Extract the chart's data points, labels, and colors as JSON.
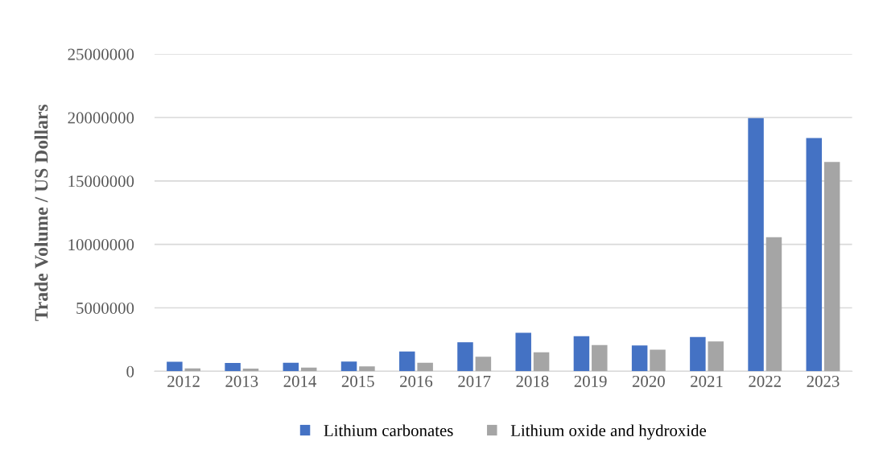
{
  "chart_data": {
    "type": "bar",
    "ylabel": "Trade Volume / US Dollars",
    "categories": [
      "2012",
      "2013",
      "2014",
      "2015",
      "2016",
      "2017",
      "2018",
      "2019",
      "2020",
      "2021",
      "2022",
      "2023"
    ],
    "series": [
      {
        "name": "Lithium carbonates",
        "color": "#4472c4",
        "values": [
          750000,
          660000,
          680000,
          770000,
          1560000,
          2290000,
          3030000,
          2760000,
          2030000,
          2710000,
          19950000,
          18380000
        ]
      },
      {
        "name": "Lithium oxide and hydroxide",
        "color": "#a5a5a5",
        "values": [
          230000,
          220000,
          300000,
          390000,
          680000,
          1150000,
          1500000,
          2070000,
          1710000,
          2350000,
          10570000,
          16500000
        ]
      }
    ],
    "ylim": [
      0,
      25000000
    ],
    "yticks": [
      0,
      5000000,
      10000000,
      15000000,
      20000000,
      25000000
    ],
    "grid": "y",
    "legend": "bottom"
  }
}
